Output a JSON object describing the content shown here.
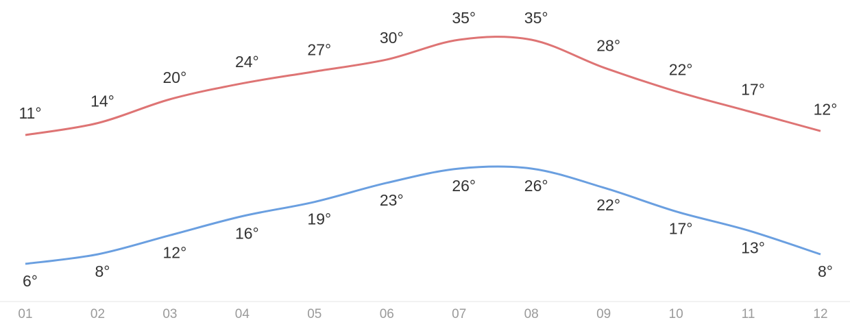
{
  "chart_data": {
    "type": "line",
    "categories": [
      "01",
      "02",
      "03",
      "04",
      "05",
      "06",
      "07",
      "08",
      "09",
      "10",
      "11",
      "12"
    ],
    "series": [
      {
        "color": "#de7474",
        "values": [
          11,
          14,
          20,
          24,
          27,
          30,
          35,
          35,
          28,
          22,
          17,
          12
        ],
        "value_labels": [
          "11°",
          "14°",
          "20°",
          "24°",
          "27°",
          "30°",
          "35°",
          "35°",
          "28°",
          "22°",
          "17°",
          "12°"
        ]
      },
      {
        "color": "#6a9fe0",
        "values": [
          6,
          8,
          12,
          16,
          19,
          23,
          26,
          26,
          22,
          17,
          13,
          8
        ],
        "value_labels": [
          "6°",
          "8°",
          "12°",
          "16°",
          "19°",
          "23°",
          "26°",
          "26°",
          "22°",
          "17°",
          "13°",
          "8°"
        ]
      }
    ]
  }
}
